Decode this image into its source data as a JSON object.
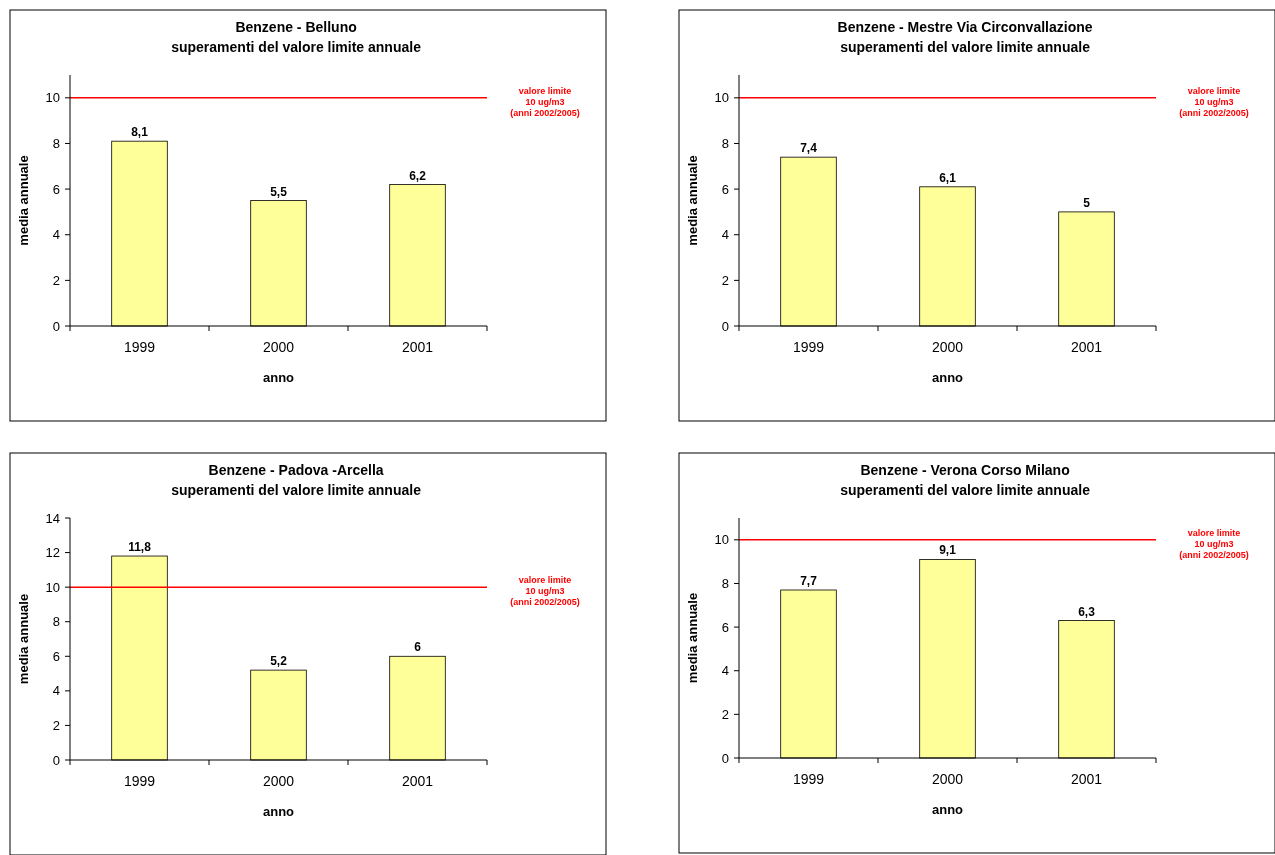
{
  "chart_data": [
    {
      "type": "bar",
      "title": "Benzene - Belluno\nsuperamenti del valore limite annuale",
      "xlabel": "anno",
      "ylabel": "media annuale",
      "categories": [
        "1999",
        "2000",
        "2001"
      ],
      "values": [
        8.1,
        5.5,
        6.2
      ],
      "color": "#ffff99",
      "ylim": [
        0,
        11
      ],
      "yticks": [
        0,
        2,
        4,
        6,
        8,
        10
      ],
      "data_labels": true,
      "value_labels": [
        "8,1",
        "5,5",
        "6,2"
      ],
      "ref_lines": [
        {
          "axis": "y",
          "value": 10,
          "label": "valore limite\n10 ug/m3\n(anni 2002/2005)",
          "color": "#ff0000"
        }
      ]
    },
    {
      "type": "bar",
      "title": "Benzene - Mestre Via Circonvallazione\nsuperamenti del valore limite annuale",
      "xlabel": "anno",
      "ylabel": "media annuale",
      "categories": [
        "1999",
        "2000",
        "2001"
      ],
      "values": [
        7.4,
        6.1,
        5
      ],
      "color": "#ffff99",
      "ylim": [
        0,
        11
      ],
      "yticks": [
        0,
        2,
        4,
        6,
        8,
        10
      ],
      "data_labels": true,
      "value_labels": [
        "7,4",
        "6,1",
        "5"
      ],
      "ref_lines": [
        {
          "axis": "y",
          "value": 10,
          "label": "valore limite\n10 ug/m3\n(anni 2002/2005)",
          "color": "#ff0000"
        }
      ]
    },
    {
      "type": "bar",
      "title": "Benzene - Padova -Arcella\nsuperamenti del valore limite annuale",
      "xlabel": "anno",
      "ylabel": "media annuale",
      "categories": [
        "1999",
        "2000",
        "2001"
      ],
      "values": [
        11.8,
        5.2,
        6
      ],
      "color": "#ffff99",
      "ylim": [
        0,
        14
      ],
      "yticks": [
        0,
        2,
        4,
        6,
        8,
        10,
        12,
        14
      ],
      "data_labels": true,
      "value_labels": [
        "11,8",
        "5,2",
        "6"
      ],
      "ref_lines": [
        {
          "axis": "y",
          "value": 10,
          "label": "valore limite\n10 ug/m3\n(anni 2002/2005)",
          "color": "#ff0000"
        }
      ]
    },
    {
      "type": "bar",
      "title": "Benzene - Verona Corso Milano\nsuperamenti del valore limite annuale",
      "xlabel": "anno",
      "ylabel": "media annuale",
      "categories": [
        "1999",
        "2000",
        "2001"
      ],
      "values": [
        7.7,
        9.1,
        6.3
      ],
      "color": "#ffff99",
      "ylim": [
        0,
        11
      ],
      "yticks": [
        0,
        2,
        4,
        6,
        8,
        10
      ],
      "data_labels": true,
      "value_labels": [
        "7,7",
        "9,1",
        "6,3"
      ],
      "ref_lines": [
        {
          "axis": "y",
          "value": 10,
          "label": "valore limite\n10 ug/m3\n(anni 2002/2005)",
          "color": "#ff0000"
        }
      ]
    }
  ]
}
